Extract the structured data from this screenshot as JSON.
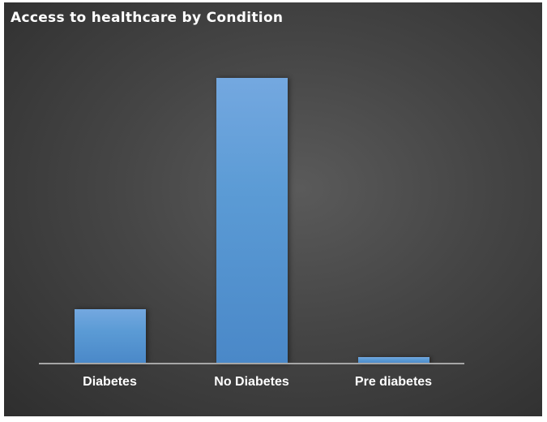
{
  "chart_data": {
    "type": "bar",
    "title": "Access to healthcare by Condition",
    "categories": [
      "Diabetes",
      "No Diabetes",
      "Pre diabetes"
    ],
    "values": [
      67,
      352,
      8
    ],
    "value_note": "relative bar heights (no value axis shown)",
    "xlabel": "",
    "ylabel": "",
    "ylim": [
      0,
      400
    ],
    "grid": false,
    "legend": null,
    "bar_color": "#5b9bd5",
    "background": "#454545"
  }
}
